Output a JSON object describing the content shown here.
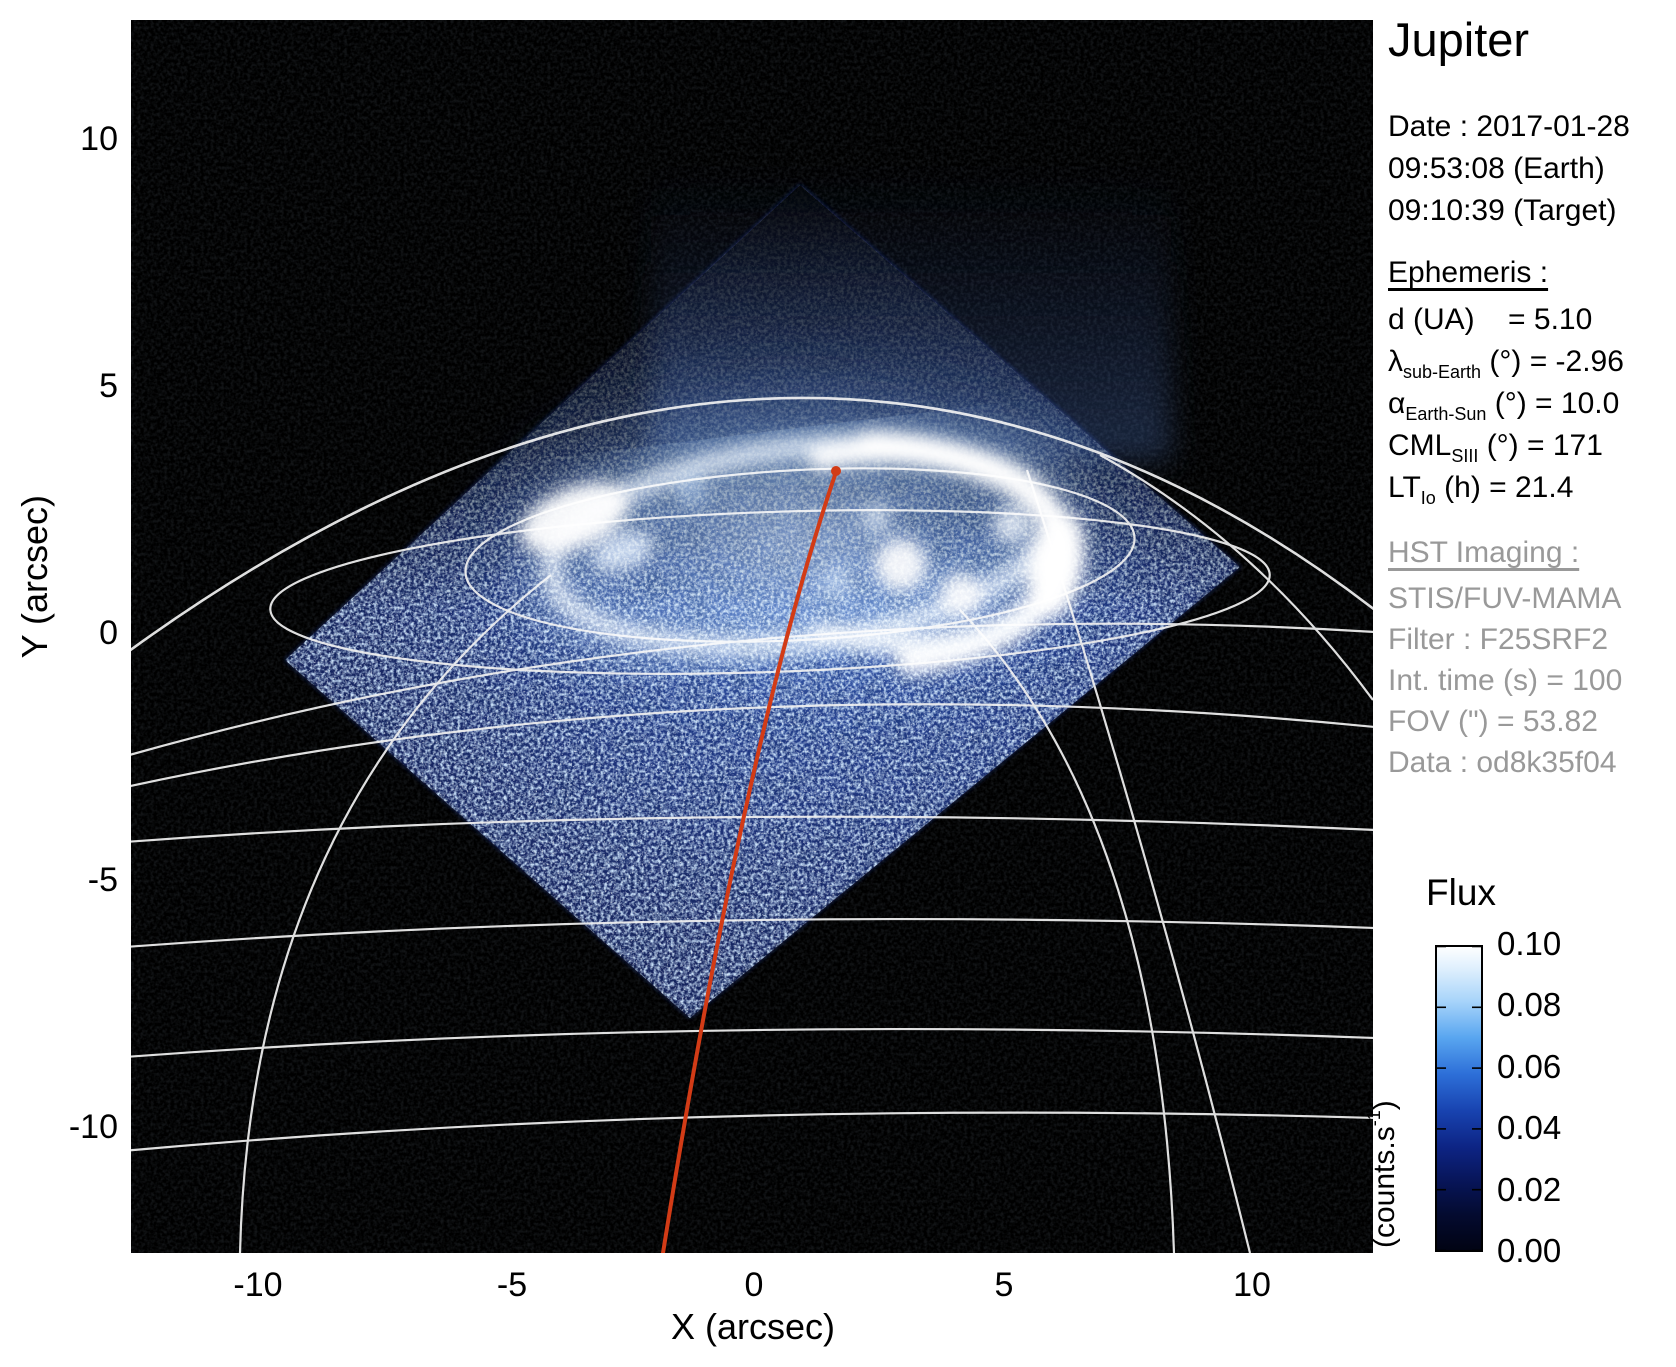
{
  "title": "Jupiter",
  "info_panel": {
    "date_lines": [
      "Date : 2017-01-28",
      "09:53:08 (Earth)",
      "09:10:39 (Target)"
    ],
    "ephemeris": {
      "heading": "Ephemeris :",
      "lines": [
        {
          "pre": "d (UA)",
          "sub": "",
          "post": "    = 5.10"
        },
        {
          "pre": "λ",
          "sub": "sub-Earth",
          "post": " (°) = -2.96"
        },
        {
          "pre": "α",
          "sub": "Earth-Sun",
          "post": " (°) = 10.0"
        },
        {
          "pre": "CML",
          "sub": "SIII",
          "post": " (°) = 171"
        },
        {
          "pre": "LT",
          "sub": "Io",
          "post": " (h) = 21.4"
        }
      ]
    },
    "hst": {
      "heading": "HST Imaging :",
      "lines": [
        "STIS/FUV-MAMA",
        "Filter : F25SRF2",
        "Int. time (s) = 100",
        "FOV (\") = 53.82",
        "Data : od8k35f04"
      ]
    }
  },
  "axes": {
    "xlabel": "X (arcsec)",
    "ylabel": "Y (arcsec)",
    "xticks": [
      "-10",
      "-5",
      "0",
      "5",
      "10"
    ],
    "yticks": [
      "10",
      "5",
      "0",
      "-5",
      "-10"
    ]
  },
  "colorbar": {
    "title": "Flux",
    "unit_pre": "(counts.s",
    "unit_sup": "-1",
    "unit_post": ")",
    "ticks": [
      "0.10",
      "0.08",
      "0.06",
      "0.04",
      "0.02",
      "0.00"
    ]
  },
  "colors": {
    "meridian_red": "#d23b16",
    "graticule_white": "#f0f0f0",
    "footprint_blue": "#12245c",
    "panel_gray": "#999999",
    "background": "#000000"
  },
  "chart_data": {
    "type": "heatmap",
    "title": "Jupiter",
    "xlabel": "X (arcsec)",
    "ylabel": "Y (arcsec)",
    "xlim": [
      -12.5,
      12.5
    ],
    "ylim": [
      -12.5,
      12.5
    ],
    "xticks": [
      -10,
      -5,
      0,
      5,
      10
    ],
    "yticks": [
      10,
      5,
      0,
      -5,
      -10
    ],
    "grid": false,
    "colorbar": {
      "title": "Flux",
      "unit": "(counts.s-1)",
      "range": [
        0.0,
        0.1
      ],
      "ticks": [
        0.1,
        0.08,
        0.06,
        0.04,
        0.02,
        0.0
      ],
      "colormap": "black → dark blue → blue → light blue → white"
    },
    "content": "HST/STIS far-ultraviolet image of Jupiter northern aurora: bright white auroral oval near (0,2) to (6,1) arcsec, noisy blue detector footprint shaped as a rotated square with lower corner near (-1,-9.5) arcsec, white planetary graticule (limb arc and latitude/longitude lines), red CML meridian from pole (1.6,0.4) to (-1.8,-12.5) arcsec",
    "annotations": {
      "date": "2017-01-28 09:53:08 (Earth) / 09:10:39 (Target)",
      "d_UA": 5.1,
      "lambda_subEarth_deg": -2.96,
      "alpha_EarthSun_deg": 10.0,
      "CML_SIII_deg": 171,
      "LT_Io_h": 21.4,
      "instrument": "STIS/FUV-MAMA",
      "filter": "F25SRF2",
      "int_time_s": 100,
      "FOV_arcsec": 53.82,
      "data_id": "od8k35f04"
    }
  }
}
